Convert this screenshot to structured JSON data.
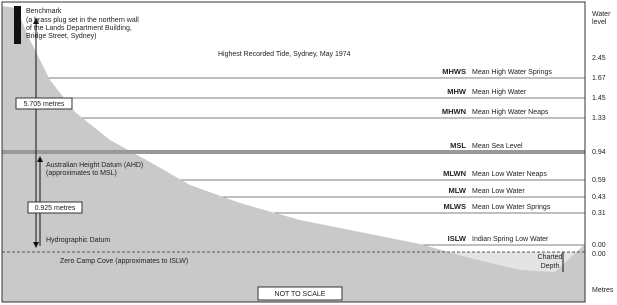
{
  "benchmark": {
    "title": "Benchmark",
    "note": [
      "(a brass plug set in the northern wall",
      "of the Lands Department Building,",
      "Bridge Street, Sydney)"
    ]
  },
  "highest_tide": {
    "label": "Highest Recorded Tide, Sydney, May 1974",
    "value": "2.45"
  },
  "measurements": [
    "5.705 metres",
    "0.925 metres"
  ],
  "ahd": [
    "Australian Height Datum (AHD)",
    "(approximates to MSL)"
  ],
  "hydrographic_datum": "Hydrographic Datum",
  "zero": {
    "label": "Zero Camp Cove (approximates to ISLW)",
    "value": "0.00"
  },
  "scale_note": "NOT TO SCALE",
  "charted_depth": [
    "Charted",
    "Depth"
  ],
  "column": {
    "header": [
      "Water",
      "level"
    ],
    "footer": "Metres"
  },
  "levels": [
    {
      "code": "MHWS",
      "name": "Mean High Water Springs",
      "value": "1.67"
    },
    {
      "code": "MHW",
      "name": "Mean High Water",
      "value": "1.45"
    },
    {
      "code": "MHWN",
      "name": "Mean High Water Neaps",
      "value": "1.33"
    },
    {
      "code": "MSL",
      "name": "Mean Sea Level",
      "value": "0.94"
    },
    {
      "code": "MLWN",
      "name": "Mean Low Water Neaps",
      "value": "0.59"
    },
    {
      "code": "MLW",
      "name": "Mean Low Water",
      "value": "0.43"
    },
    {
      "code": "MLWS",
      "name": "Mean Low Water Springs",
      "value": "0.31"
    },
    {
      "code": "ISLW",
      "name": "Indian Spring Low Water",
      "value": "0.00"
    }
  ]
}
